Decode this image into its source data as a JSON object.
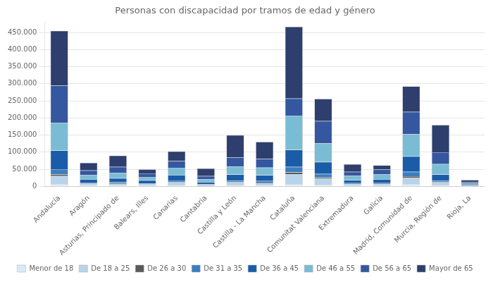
{
  "chart_data": {
    "type": "bar",
    "title": "Personas con discapacidad por tramos de edad y género",
    "categories": [
      "Andalucía",
      "Aragón",
      "Asturias, Principado de",
      "Balears, Illes",
      "Canarias",
      "Cantabria",
      "Castilla y León",
      "Castilla - La Mancha",
      "Cataluña",
      "Comunitat Valenciana",
      "Extremadura",
      "Galicia",
      "Madrid, Comunidad de",
      "Murcia, Región de",
      "Rioja, La"
    ],
    "series": [
      {
        "name": "Menor de 18",
        "color": "#dce9f5",
        "values": [
          5000,
          1500,
          1500,
          1000,
          2000,
          800,
          2000,
          2000,
          7000,
          4000,
          1000,
          1000,
          5000,
          2000,
          300
        ]
      },
      {
        "name": "De 18 a 25",
        "color": "#b8d4ea",
        "values": [
          25000,
          5000,
          5500,
          4000,
          8000,
          2800,
          8000,
          7000,
          28000,
          18000,
          4500,
          4500,
          20000,
          8000,
          1000
        ]
      },
      {
        "name": "De 26 a 30",
        "color": "#5a5a5a",
        "values": [
          5000,
          1200,
          1200,
          1000,
          2000,
          800,
          1800,
          1800,
          6000,
          4000,
          1000,
          1000,
          4500,
          1800,
          300
        ]
      },
      {
        "name": "De 31 a 35",
        "color": "#3a7ebf",
        "values": [
          15000,
          3000,
          3500,
          2500,
          5000,
          1800,
          5000,
          5000,
          16000,
          10000,
          2800,
          3000,
          13000,
          5000,
          700
        ]
      },
      {
        "name": "De 36 a 45",
        "color": "#1a5ca8",
        "values": [
          55000,
          10000,
          12000,
          9000,
          16000,
          6000,
          18000,
          17000,
          50000,
          35000,
          9000,
          11000,
          45000,
          18000,
          2500
        ]
      },
      {
        "name": "De 46 a 55",
        "color": "#7bbcd5",
        "values": [
          80000,
          12000,
          15000,
          10000,
          21000,
          8000,
          23000,
          22000,
          100000,
          55000,
          12000,
          14000,
          65000,
          30000,
          3000
        ]
      },
      {
        "name": "De 56 a 65",
        "color": "#3457a0",
        "values": [
          110000,
          14000,
          18000,
          10000,
          20000,
          10000,
          27000,
          25000,
          50000,
          65000,
          12000,
          15000,
          65000,
          35000,
          4000
        ]
      },
      {
        "name": "Mayor de 65",
        "color": "#2e3f6e",
        "values": [
          160000,
          22000,
          33000,
          12000,
          28000,
          22000,
          65000,
          50000,
          210000,
          65000,
          22000,
          12000,
          75000,
          80000,
          7000
        ]
      }
    ],
    "ylim": [
      0,
      480000
    ],
    "yticks": [
      0,
      {
        "value": 50000,
        "label": "50.000"
      },
      {
        "value": 100000,
        "label": "100.000"
      },
      {
        "value": 150000,
        "label": "150.000"
      },
      {
        "value": 200000,
        "label": "200.000"
      },
      {
        "value": 250000,
        "label": "250.000"
      },
      {
        "value": 300000,
        "label": "300.000"
      },
      {
        "value": 350000,
        "label": "350.000"
      },
      {
        "value": 400000,
        "label": "400.000"
      },
      {
        "value": 450000,
        "label": "450.000"
      }
    ],
    "grid": true,
    "stacked": true,
    "legend": "bottom"
  }
}
